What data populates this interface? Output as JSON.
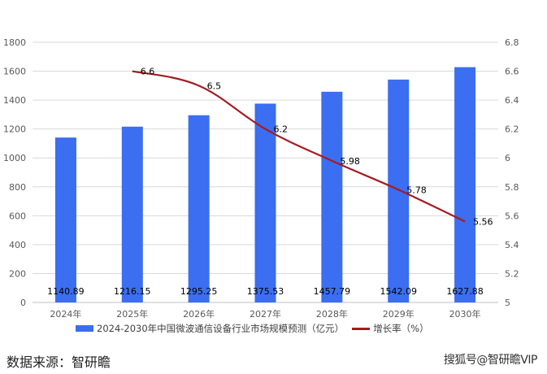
{
  "chart_data": {
    "type": "bar+line",
    "title": "",
    "categories": [
      "2024年",
      "2025年",
      "2026年",
      "2027年",
      "2028年",
      "2029年",
      "2030年"
    ],
    "series": [
      {
        "name": "2024-2030年中国微波通信设备行业市场规模预测（亿元）",
        "type": "bar",
        "axis": "left",
        "color": "#3b6ef0",
        "values": [
          1140.89,
          1216.15,
          1295.25,
          1375.53,
          1457.79,
          1542.09,
          1627.88
        ],
        "labels": [
          "1140.89",
          "1216.15",
          "1295.25",
          "1375.53",
          "1457.79",
          "1542.09",
          "1627.88"
        ]
      },
      {
        "name": "增长率（%）",
        "type": "line",
        "axis": "right",
        "color": "#a51c24",
        "values": [
          null,
          6.6,
          6.5,
          6.2,
          5.98,
          5.78,
          5.56
        ],
        "labels": [
          "",
          "6.6",
          "6.5",
          "6.2",
          "5.98",
          "5.78",
          "5.56"
        ]
      }
    ],
    "left_axis": {
      "ylim": [
        0,
        1800
      ],
      "ticks": [
        "0",
        "200",
        "400",
        "600",
        "800",
        "1000",
        "1200",
        "1400",
        "1600",
        "1800"
      ]
    },
    "right_axis": {
      "ylim": [
        5,
        6.8
      ],
      "ticks": [
        "5",
        "5.2",
        "5.4",
        "5.6",
        "5.8",
        "6",
        "6.2",
        "6.4",
        "6.6",
        "6.8"
      ]
    },
    "xlabel": "",
    "ylabel": "",
    "grid": true,
    "legend_position": "bottom"
  },
  "legend": {
    "bar_label": "2024-2030年中国微波通信设备行业市场规模预测（亿元）",
    "line_label": "增长率（%）"
  },
  "footer": {
    "source": "数据来源：智研瞻",
    "watermark": "搜狐号@智研瞻VIP"
  }
}
